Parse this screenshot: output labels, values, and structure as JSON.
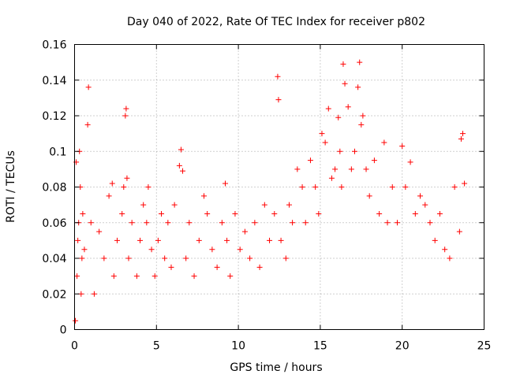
{
  "chart_data": {
    "type": "scatter",
    "title": "Day 040 of 2022, Rate Of TEC Index for receiver p802",
    "xlabel": "GPS time / hours",
    "ylabel": "ROTI / TECUs",
    "xlim": [
      0,
      25
    ],
    "ylim": [
      0,
      0.16
    ],
    "x_ticks": [
      0,
      5,
      10,
      15,
      20,
      25
    ],
    "y_ticks": [
      0,
      0.02,
      0.04,
      0.06,
      0.08,
      0.1,
      0.12,
      0.14,
      0.16
    ],
    "x_tick_labels": [
      "0",
      "5",
      "10",
      "15",
      "20",
      "25"
    ],
    "y_tick_labels": [
      "0",
      "0.02",
      "0.04",
      "0.06",
      "0.08",
      "0.1",
      "0.12",
      "0.14",
      "0.16"
    ],
    "grid": true,
    "marker": "plus",
    "color": "#ff0000",
    "series": [
      {
        "x": [
          0.05,
          0.1,
          0.15,
          0.2,
          0.25,
          0.3,
          0.35,
          0.4,
          0.45,
          0.5,
          0.6,
          0.8,
          0.85,
          1.0,
          1.2,
          1.5,
          1.8,
          2.1,
          2.3,
          2.4,
          2.6,
          2.9,
          3.0,
          3.1,
          3.15,
          3.2,
          3.3,
          3.5,
          3.8,
          4.0,
          4.2,
          4.4,
          4.5,
          4.7,
          4.9,
          5.1,
          5.3,
          5.5,
          5.7,
          5.9,
          6.1,
          6.4,
          6.5,
          6.6,
          6.8,
          7.0,
          7.3,
          7.6,
          7.9,
          8.1,
          8.4,
          8.7,
          9.0,
          9.2,
          9.3,
          9.5,
          9.8,
          10.1,
          10.4,
          10.7,
          11.0,
          11.3,
          11.6,
          11.9,
          12.2,
          12.4,
          12.45,
          12.6,
          12.9,
          13.1,
          13.3,
          13.6,
          13.9,
          14.1,
          14.4,
          14.7,
          14.9,
          15.1,
          15.3,
          15.5,
          15.7,
          15.9,
          16.1,
          16.2,
          16.3,
          16.4,
          16.5,
          16.7,
          16.9,
          17.1,
          17.3,
          17.4,
          17.5,
          17.6,
          17.8,
          18.0,
          18.3,
          18.6,
          18.9,
          19.1,
          19.4,
          19.7,
          20.0,
          20.2,
          20.5,
          20.8,
          21.1,
          21.4,
          21.7,
          22.0,
          22.3,
          22.6,
          22.9,
          23.2,
          23.5,
          23.6,
          23.7,
          23.8
        ],
        "y": [
          0.005,
          0.094,
          0.03,
          0.05,
          0.06,
          0.1,
          0.08,
          0.02,
          0.04,
          0.065,
          0.045,
          0.115,
          0.136,
          0.06,
          0.02,
          0.055,
          0.04,
          0.075,
          0.082,
          0.03,
          0.05,
          0.065,
          0.08,
          0.12,
          0.124,
          0.085,
          0.04,
          0.06,
          0.03,
          0.05,
          0.07,
          0.06,
          0.08,
          0.045,
          0.03,
          0.05,
          0.065,
          0.04,
          0.06,
          0.035,
          0.07,
          0.092,
          0.101,
          0.089,
          0.04,
          0.06,
          0.03,
          0.05,
          0.075,
          0.065,
          0.045,
          0.035,
          0.06,
          0.082,
          0.05,
          0.03,
          0.065,
          0.045,
          0.055,
          0.04,
          0.06,
          0.035,
          0.07,
          0.05,
          0.065,
          0.142,
          0.129,
          0.05,
          0.04,
          0.07,
          0.06,
          0.09,
          0.08,
          0.06,
          0.095,
          0.08,
          0.065,
          0.11,
          0.105,
          0.124,
          0.085,
          0.09,
          0.119,
          0.1,
          0.08,
          0.149,
          0.138,
          0.125,
          0.09,
          0.1,
          0.136,
          0.15,
          0.115,
          0.12,
          0.09,
          0.075,
          0.095,
          0.065,
          0.105,
          0.06,
          0.08,
          0.06,
          0.103,
          0.08,
          0.094,
          0.065,
          0.075,
          0.07,
          0.06,
          0.05,
          0.065,
          0.045,
          0.04,
          0.08,
          0.055,
          0.107,
          0.11,
          0.082
        ]
      }
    ]
  }
}
